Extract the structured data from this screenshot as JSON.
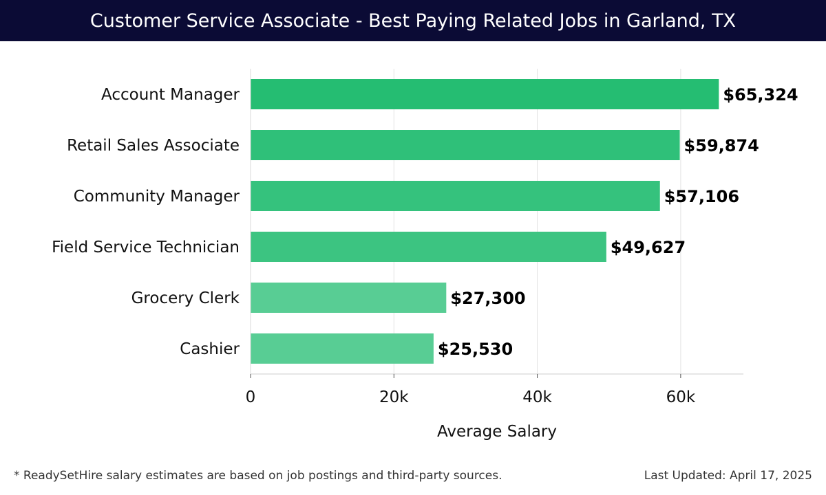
{
  "chart_data": {
    "type": "bar",
    "orientation": "horizontal",
    "title": "Customer Service Associate - Best Paying Related Jobs in Garland, TX",
    "xlabel": "Average Salary",
    "ylabel": "",
    "xlim": [
      0,
      68750
    ],
    "x_ticks": [
      0,
      20000,
      40000,
      60000
    ],
    "x_tick_labels": [
      "0",
      "20k",
      "40k",
      "60k"
    ],
    "grid": "vertical",
    "categories": [
      "Account Manager",
      "Retail Sales Associate",
      "Community Manager",
      "Field Service Technician",
      "Grocery Clerk",
      "Cashier"
    ],
    "values": [
      65324,
      59874,
      57106,
      49627,
      27300,
      25530
    ],
    "value_labels": [
      "$65,324",
      "$59,874",
      "$57,106",
      "$49,627",
      "$27,300",
      "$25,530"
    ],
    "bar_colors": [
      "#25bd72",
      "#2fc079",
      "#35c27d",
      "#3cc481",
      "#58cd94",
      "#58cd94"
    ]
  },
  "footer": {
    "note": "* ReadySetHire salary estimates are based on job postings and third-party sources.",
    "updated": "Last Updated: April 17, 2025"
  }
}
